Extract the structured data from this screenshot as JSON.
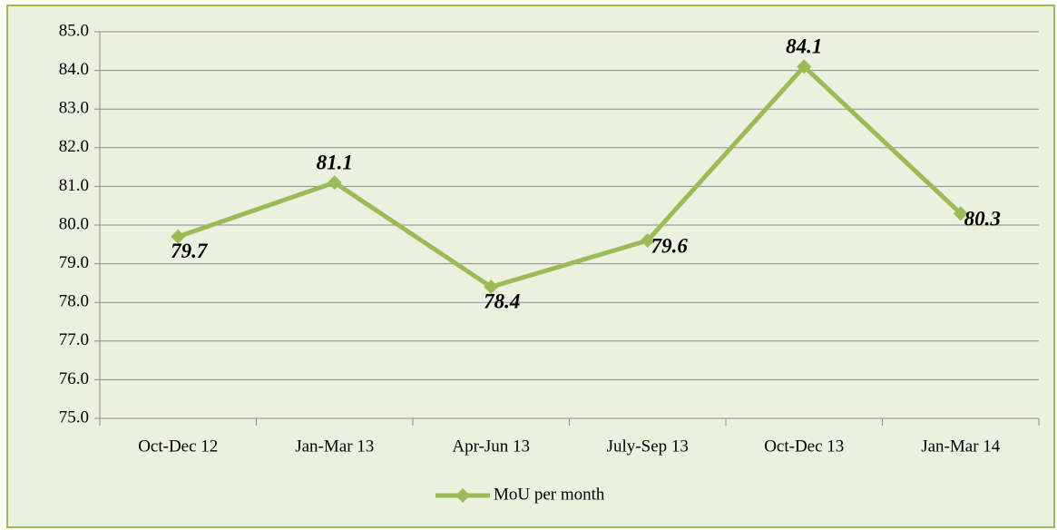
{
  "chart_data": {
    "type": "line",
    "categories": [
      "Oct-Dec 12",
      "Jan-Mar 13",
      "Apr-Jun 13",
      "July-Sep 13",
      "Oct-Dec 13",
      "Jan-Mar 14"
    ],
    "series": [
      {
        "name": "MoU per month",
        "color": "#9bbb59",
        "values": [
          79.7,
          81.1,
          78.4,
          79.6,
          84.1,
          80.3
        ]
      }
    ],
    "ylim": [
      75,
      85
    ],
    "yticks": [
      {
        "value": 75,
        "label": "75.0"
      },
      {
        "value": 76,
        "label": "76.0"
      },
      {
        "value": 77,
        "label": "77.0"
      },
      {
        "value": 78,
        "label": "78.0"
      },
      {
        "value": 79,
        "label": "79.0"
      },
      {
        "value": 80,
        "label": "80.0"
      },
      {
        "value": 81,
        "label": "81.0"
      },
      {
        "value": 82,
        "label": "82.0"
      },
      {
        "value": 83,
        "label": "83.0"
      },
      {
        "value": 84,
        "label": "84.0"
      },
      {
        "value": 85,
        "label": "85.0"
      }
    ],
    "grid": true,
    "legend": "bottom"
  }
}
